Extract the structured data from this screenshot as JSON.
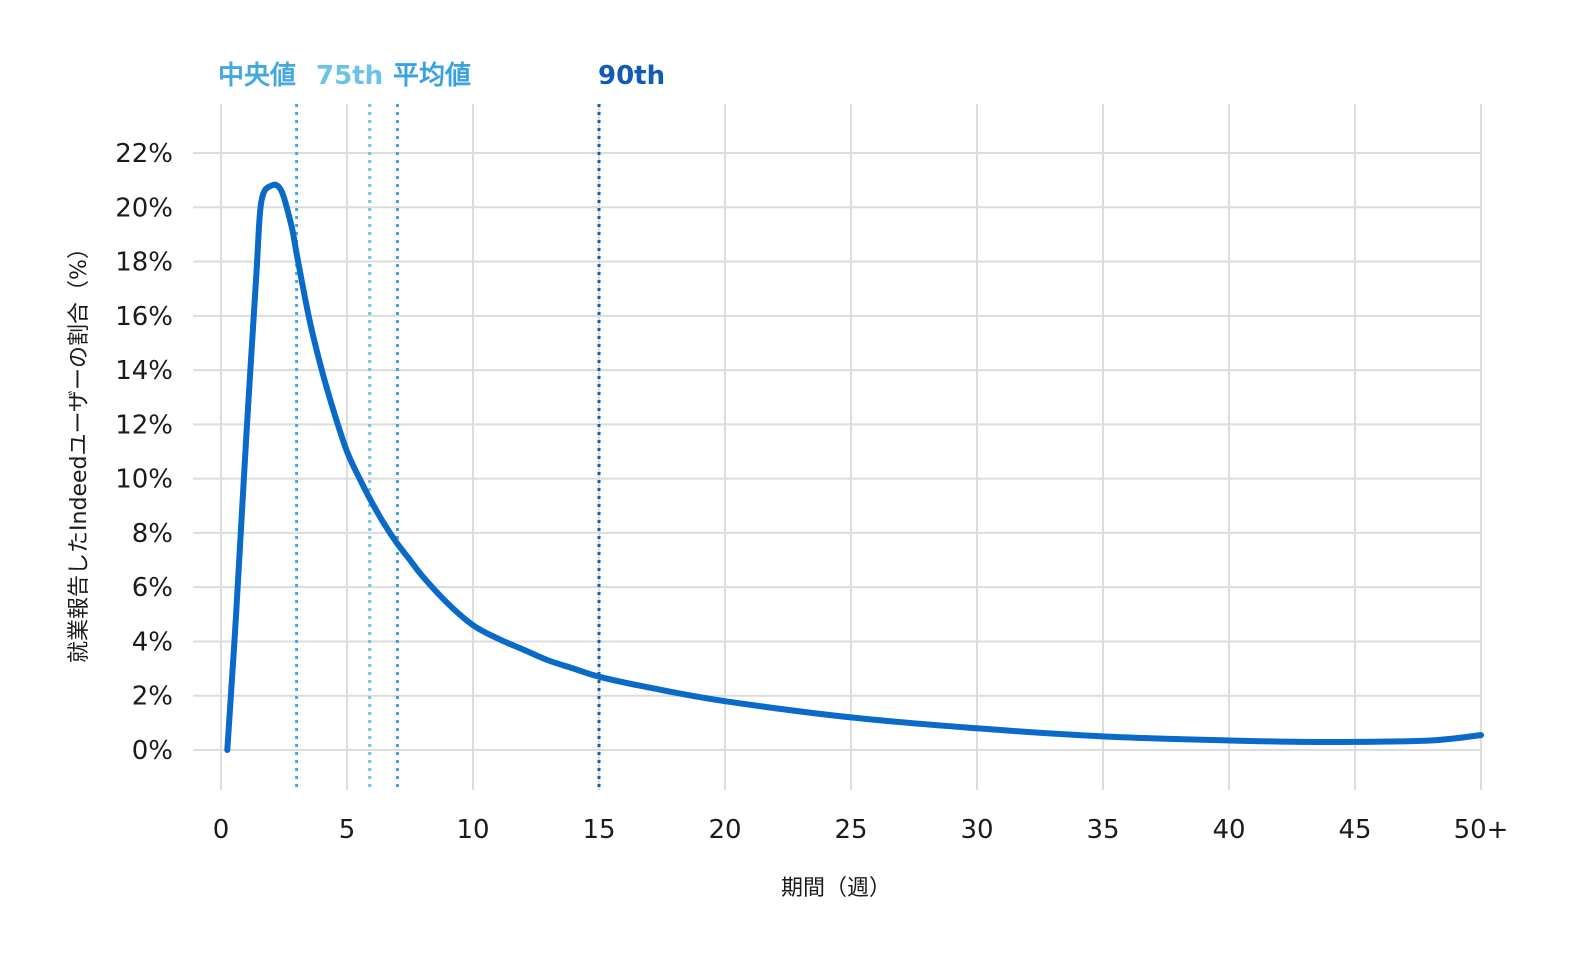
{
  "chart_data": {
    "type": "line",
    "title": "",
    "xlabel": "期間（週）",
    "ylabel": "就業報告したIndeedユーザーの割合（%）",
    "xlim": [
      0,
      50
    ],
    "ylim": [
      0,
      22
    ],
    "x_ticks": [
      {
        "value": 0,
        "label": "0"
      },
      {
        "value": 5,
        "label": "5"
      },
      {
        "value": 10,
        "label": "10"
      },
      {
        "value": 15,
        "label": "15"
      },
      {
        "value": 20,
        "label": "20"
      },
      {
        "value": 25,
        "label": "25"
      },
      {
        "value": 30,
        "label": "30"
      },
      {
        "value": 35,
        "label": "35"
      },
      {
        "value": 40,
        "label": "40"
      },
      {
        "value": 45,
        "label": "45"
      },
      {
        "value": 50,
        "label": "50+"
      }
    ],
    "y_ticks": [
      {
        "value": 0,
        "label": "0%"
      },
      {
        "value": 2,
        "label": "2%"
      },
      {
        "value": 4,
        "label": "4%"
      },
      {
        "value": 6,
        "label": "6%"
      },
      {
        "value": 8,
        "label": "8%"
      },
      {
        "value": 10,
        "label": "10%"
      },
      {
        "value": 12,
        "label": "12%"
      },
      {
        "value": 14,
        "label": "14%"
      },
      {
        "value": 16,
        "label": "16%"
      },
      {
        "value": 18,
        "label": "18%"
      },
      {
        "value": 20,
        "label": "20%"
      },
      {
        "value": 22,
        "label": "22%"
      }
    ],
    "grid": true,
    "line_color": "#0a6ac8",
    "grid_color": "#dcdcdc",
    "series": [
      {
        "points": [
          [
            0.25,
            0.0
          ],
          [
            0.6,
            5.0
          ],
          [
            1.0,
            11.5
          ],
          [
            1.4,
            17.5
          ],
          [
            1.6,
            20.2
          ],
          [
            2.0,
            20.8
          ],
          [
            2.4,
            20.6
          ],
          [
            2.8,
            19.3
          ],
          [
            3.0,
            18.3
          ],
          [
            3.5,
            15.9
          ],
          [
            4.0,
            14.0
          ],
          [
            4.5,
            12.4
          ],
          [
            5.0,
            11.0
          ],
          [
            5.5,
            10.0
          ],
          [
            6.0,
            9.1
          ],
          [
            6.5,
            8.3
          ],
          [
            7.0,
            7.6
          ],
          [
            7.5,
            7.0
          ],
          [
            8.0,
            6.4
          ],
          [
            9.0,
            5.4
          ],
          [
            10.0,
            4.6
          ],
          [
            11.0,
            4.1
          ],
          [
            12.0,
            3.7
          ],
          [
            13.0,
            3.3
          ],
          [
            14.0,
            3.0
          ],
          [
            15.0,
            2.7
          ],
          [
            17.0,
            2.3
          ],
          [
            20.0,
            1.8
          ],
          [
            25.0,
            1.2
          ],
          [
            30.0,
            0.8
          ],
          [
            35.0,
            0.5
          ],
          [
            40.0,
            0.35
          ],
          [
            43.0,
            0.3
          ],
          [
            45.0,
            0.3
          ],
          [
            48.0,
            0.35
          ],
          [
            50.0,
            0.55
          ]
        ]
      }
    ],
    "markers": [
      {
        "label": "中央値",
        "x": 3,
        "color": "#46a8e0"
      },
      {
        "label": "75th",
        "x": 5.9,
        "color": "#6bc4e8"
      },
      {
        "label": "平均値",
        "x": 7.0,
        "color": "#3aa2dc"
      },
      {
        "label": "90th",
        "x": 15,
        "color": "#0f5bb5"
      }
    ]
  }
}
